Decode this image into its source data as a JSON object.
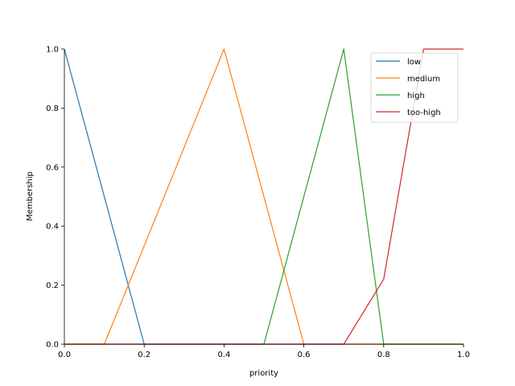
{
  "chart_data": {
    "type": "line",
    "xlabel": "priority",
    "ylabel": "Membership",
    "xlim": [
      0,
      1
    ],
    "ylim": [
      0,
      1
    ],
    "xticks": [
      "0.0",
      "0.2",
      "0.4",
      "0.6",
      "0.8",
      "1.0"
    ],
    "yticks": [
      "0.0",
      "0.2",
      "0.4",
      "0.6",
      "0.8",
      "1.0"
    ],
    "grid": false,
    "legend_position": "top-right",
    "series": [
      {
        "name": "low",
        "color": "#1f77b4",
        "x": [
          0.0,
          0.2,
          1.0
        ],
        "y": [
          1.0,
          0.0,
          0.0
        ]
      },
      {
        "name": "medium",
        "color": "#ff7f0e",
        "x": [
          0.0,
          0.1,
          0.4,
          0.6,
          1.0
        ],
        "y": [
          0.0,
          0.0,
          1.0,
          0.0,
          0.0
        ]
      },
      {
        "name": "high",
        "color": "#2ca02c",
        "x": [
          0.0,
          0.5,
          0.7,
          0.8,
          1.0
        ],
        "y": [
          0.0,
          0.0,
          1.0,
          0.0,
          0.0
        ]
      },
      {
        "name": "too-high",
        "color": "#d62728",
        "x": [
          0.0,
          0.7,
          0.8,
          0.9,
          1.0
        ],
        "y": [
          0.0,
          0.0,
          0.22,
          1.0,
          1.0
        ]
      }
    ]
  }
}
